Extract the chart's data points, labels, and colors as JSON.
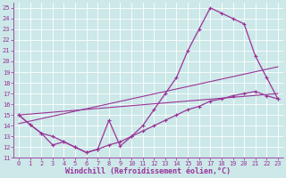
{
  "background_color": "#cce8e8",
  "grid_color": "#aacccc",
  "line_color": "#993399",
  "xlabel": "Windchill (Refroidissement éolien,°C)",
  "xlim": [
    -0.5,
    23.5
  ],
  "ylim": [
    11,
    25.5
  ],
  "xticks": [
    0,
    1,
    2,
    3,
    4,
    5,
    6,
    7,
    8,
    9,
    10,
    11,
    12,
    13,
    14,
    15,
    16,
    17,
    18,
    19,
    20,
    21,
    22,
    23
  ],
  "yticks": [
    11,
    12,
    13,
    14,
    15,
    16,
    17,
    18,
    19,
    20,
    21,
    22,
    23,
    24,
    25
  ],
  "curve_upper_x": [
    0,
    1,
    2,
    3,
    4,
    5,
    6,
    7,
    8,
    9,
    10,
    11,
    12,
    13,
    14,
    15,
    16,
    17,
    18,
    19,
    20,
    21,
    22,
    23
  ],
  "curve_upper_y": [
    15.0,
    14.1,
    13.3,
    13.0,
    12.5,
    12.0,
    11.5,
    11.8,
    14.5,
    12.1,
    13.0,
    14.0,
    15.5,
    17.0,
    18.5,
    21.0,
    23.0,
    25.0,
    24.5,
    24.0,
    23.5,
    20.5,
    18.5,
    16.5
  ],
  "curve_lower_x": [
    0,
    1,
    2,
    3,
    4,
    5,
    6,
    7,
    8,
    9,
    10,
    11,
    12,
    13,
    14,
    15,
    16,
    17,
    18,
    19,
    20,
    21,
    22,
    23
  ],
  "curve_lower_y": [
    15.0,
    14.1,
    13.3,
    12.2,
    12.5,
    12.0,
    11.5,
    11.8,
    12.2,
    12.5,
    13.0,
    13.5,
    14.0,
    14.5,
    15.0,
    15.5,
    15.8,
    16.3,
    16.5,
    16.8,
    17.0,
    17.2,
    16.8,
    16.5
  ],
  "trend1_x": [
    0,
    23
  ],
  "trend1_y": [
    15.0,
    17.0
  ],
  "trend2_x": [
    0,
    23
  ],
  "trend2_y": [
    14.2,
    19.5
  ],
  "tick_fontsize": 5,
  "label_fontsize": 6
}
